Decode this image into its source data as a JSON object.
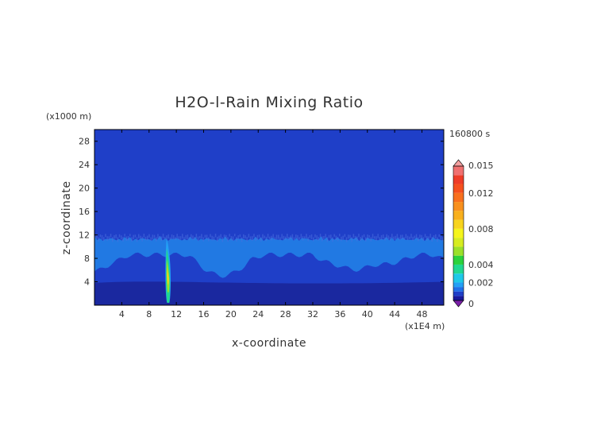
{
  "chart_data": {
    "type": "heatmap",
    "title": "H2O-l-Rain Mixing Ratio",
    "time_label": "160800 s",
    "xlabel": "x-coordinate",
    "ylabel": "z-coordinate",
    "x_unit": "(x1E4 m)",
    "y_unit": "(x1000 m)",
    "xlim": [
      0,
      51.2
    ],
    "ylim": [
      0,
      30
    ],
    "xticks": [
      4,
      8,
      12,
      16,
      20,
      24,
      28,
      32,
      36,
      40,
      44,
      48
    ],
    "yticks": [
      4,
      8,
      12,
      16,
      20,
      24,
      28
    ],
    "colorbar": {
      "range": [
        0,
        0.015
      ],
      "tick_values": [
        0,
        0.002,
        0.004,
        0.008,
        0.012,
        0.015
      ],
      "tick_labels": [
        "0",
        "0.002",
        "0.004",
        "0.008",
        "0.012",
        "0.015"
      ],
      "levels": [
        {
          "from": 0.0,
          "to": 0.0005,
          "color": "#1a1a9c"
        },
        {
          "from": 0.0005,
          "to": 0.001,
          "color": "#1f3fc8"
        },
        {
          "from": 0.001,
          "to": 0.0015,
          "color": "#1f70e8"
        },
        {
          "from": 0.0015,
          "to": 0.002,
          "color": "#23a0f5"
        },
        {
          "from": 0.002,
          "to": 0.003,
          "color": "#1ec8e8"
        },
        {
          "from": 0.003,
          "to": 0.004,
          "color": "#20d890"
        },
        {
          "from": 0.004,
          "to": 0.005,
          "color": "#2bd23c"
        },
        {
          "from": 0.005,
          "to": 0.006,
          "color": "#9be02a"
        },
        {
          "from": 0.006,
          "to": 0.007,
          "color": "#d6ec20"
        },
        {
          "from": 0.007,
          "to": 0.008,
          "color": "#f5f51c"
        },
        {
          "from": 0.008,
          "to": 0.009,
          "color": "#f8d41e"
        },
        {
          "from": 0.009,
          "to": 0.01,
          "color": "#f8b01e"
        },
        {
          "from": 0.01,
          "to": 0.011,
          "color": "#f8901e"
        },
        {
          "from": 0.011,
          "to": 0.012,
          "color": "#f8701e"
        },
        {
          "from": 0.012,
          "to": 0.013,
          "color": "#f5501e"
        },
        {
          "from": 0.013,
          "to": 0.014,
          "color": "#ee3c28"
        },
        {
          "from": 0.014,
          "to": 0.015,
          "color": "#f07070"
        }
      ],
      "under_color": "#7a1fa8",
      "over_color": "#f4a0a0"
    },
    "background_value": 0.0005,
    "cloud_band": {
      "z_bottom": 8.6,
      "z_top": 11.9,
      "value": 0.0015,
      "descends_to_z": 5.2,
      "low_layer_z_top": 3.8
    },
    "rain_shaft": {
      "x_center": 10.8,
      "z_bottom": 0,
      "z_top": 11.4,
      "x_halfwidth": 0.55,
      "peak_value": 0.0085,
      "peak_z": 5.8
    }
  }
}
